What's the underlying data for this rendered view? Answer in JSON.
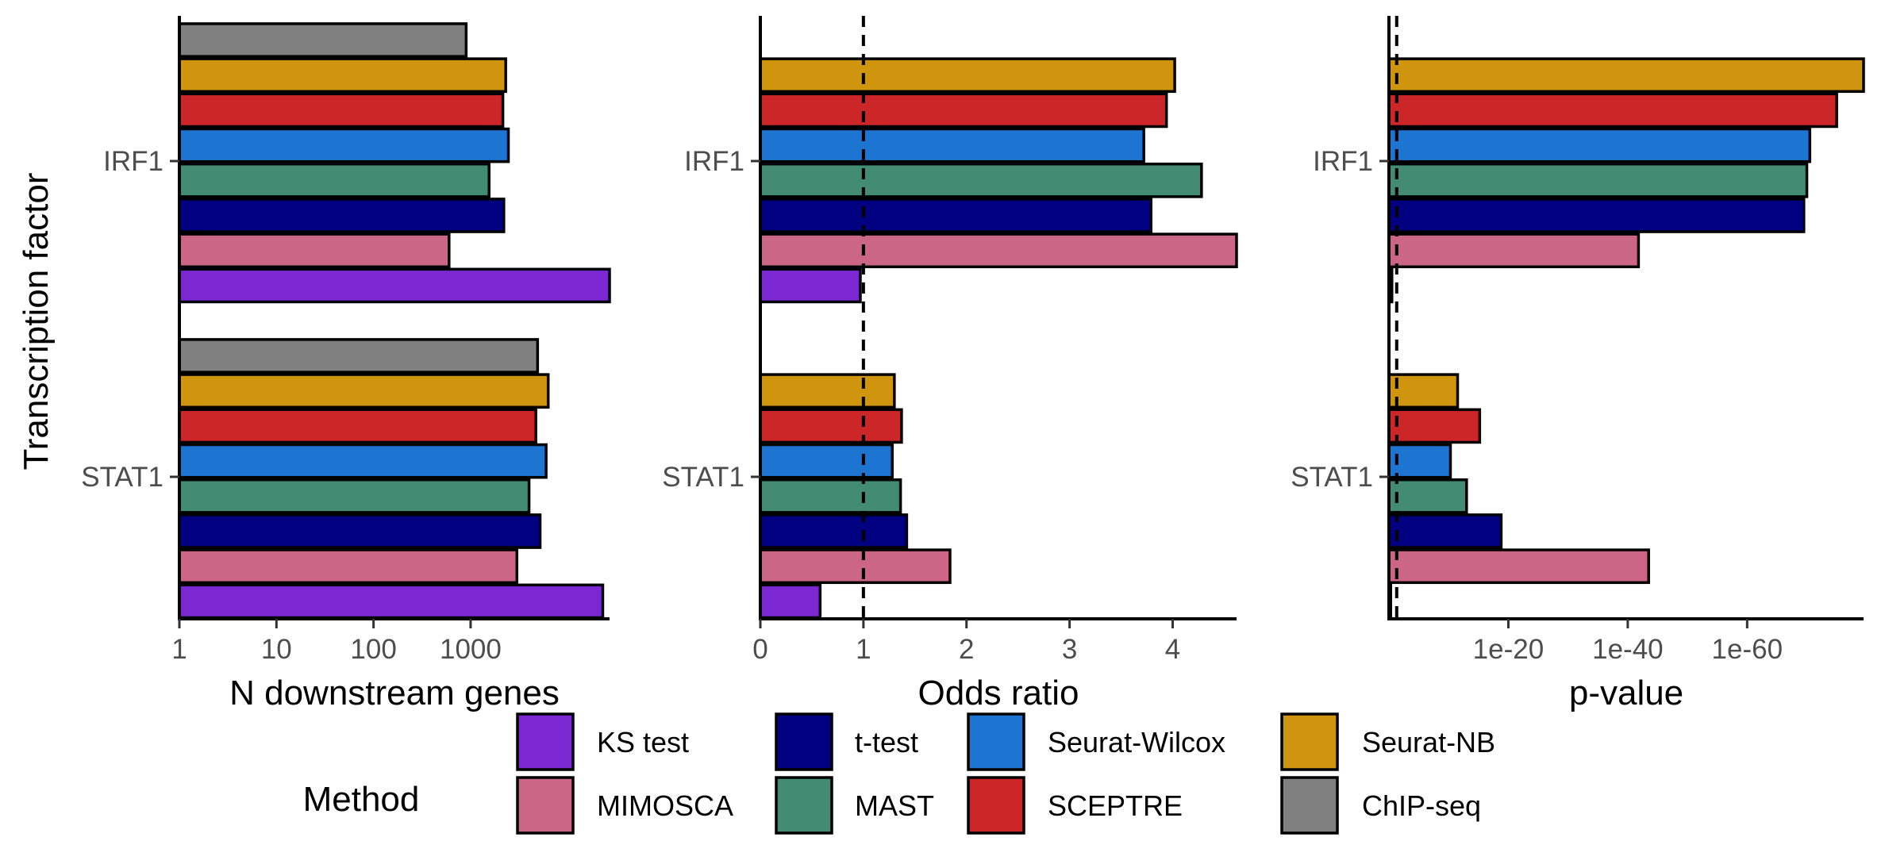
{
  "colors": {
    "KS test": "#7B27D2",
    "MIMOSCA": "#CC6686",
    "t-test": "#000080",
    "MAST": "#448B73",
    "Seurat-Wilcox": "#1D75D1",
    "SCEPTRE": "#CC2629",
    "Seurat-NB": "#CF950E",
    "ChIP-seq": "#808080"
  },
  "chart_data": [
    {
      "type": "bar",
      "orientation": "horizontal",
      "xlabel": "N downstream genes",
      "ylabel": "Transcription factor",
      "x_scale": "log10",
      "xlim": [
        1,
        27000
      ],
      "x_ticks": [
        1,
        10,
        100,
        1000
      ],
      "x_tick_labels": [
        "1",
        "10",
        "100",
        "1000"
      ],
      "categories": [
        "IRF1",
        "STAT1"
      ],
      "series": [
        {
          "name": "ChIP-seq",
          "values": [
            900,
            4900
          ]
        },
        {
          "name": "Seurat-NB",
          "values": [
            2300,
            6300
          ]
        },
        {
          "name": "SCEPTRE",
          "values": [
            2150,
            4700
          ]
        },
        {
          "name": "Seurat-Wilcox",
          "values": [
            2450,
            6000
          ]
        },
        {
          "name": "MAST",
          "values": [
            1550,
            4000
          ]
        },
        {
          "name": "t-test",
          "values": [
            2200,
            5200
          ]
        },
        {
          "name": "MIMOSCA",
          "values": [
            600,
            3000
          ]
        },
        {
          "name": "KS test",
          "values": [
            27000,
            23000
          ]
        }
      ]
    },
    {
      "type": "bar",
      "orientation": "horizontal",
      "xlabel": "Odds ratio",
      "x_scale": "linear",
      "xlim": [
        0,
        4.62
      ],
      "x_ticks": [
        0,
        1,
        2,
        3,
        4
      ],
      "x_tick_labels": [
        "0",
        "1",
        "2",
        "3",
        "4"
      ],
      "reference_line": 1,
      "categories": [
        "IRF1",
        "STAT1"
      ],
      "series": [
        {
          "name": "Seurat-NB",
          "values": [
            4.02,
            1.3
          ]
        },
        {
          "name": "SCEPTRE",
          "values": [
            3.94,
            1.37
          ]
        },
        {
          "name": "Seurat-Wilcox",
          "values": [
            3.72,
            1.28
          ]
        },
        {
          "name": "MAST",
          "values": [
            4.28,
            1.36
          ]
        },
        {
          "name": "t-test",
          "values": [
            3.79,
            1.42
          ]
        },
        {
          "name": "MIMOSCA",
          "values": [
            4.62,
            1.84
          ]
        },
        {
          "name": "KS test",
          "values": [
            0.97,
            0.58
          ]
        }
      ]
    },
    {
      "type": "bar",
      "orientation": "horizontal",
      "xlabel": "p-value",
      "x_scale": "-log10 (reversed log)",
      "xlim_neglog10": [
        0,
        79.5
      ],
      "x_ticks_neglog10": [
        20,
        40,
        60
      ],
      "x_tick_labels": [
        "1e-20",
        "1e-40",
        "1e-60"
      ],
      "reference_line_neglog10": 1.3,
      "categories": [
        "IRF1",
        "STAT1"
      ],
      "series": [
        {
          "name": "Seurat-NB",
          "values_neglog10": [
            79.5,
            11.5
          ]
        },
        {
          "name": "SCEPTRE",
          "values_neglog10": [
            75.0,
            15.2
          ]
        },
        {
          "name": "Seurat-Wilcox",
          "values_neglog10": [
            70.5,
            10.3
          ]
        },
        {
          "name": "MAST",
          "values_neglog10": [
            70.0,
            13.0
          ]
        },
        {
          "name": "t-test",
          "values_neglog10": [
            69.5,
            18.8
          ]
        },
        {
          "name": "MIMOSCA",
          "values_neglog10": [
            41.8,
            43.5
          ]
        },
        {
          "name": "KS test",
          "values_neglog10": [
            0.5,
            0.3
          ]
        }
      ]
    }
  ],
  "legend": {
    "title": "Method",
    "entries": [
      "KS test",
      "MIMOSCA",
      "t-test",
      "MAST",
      "Seurat-Wilcox",
      "SCEPTRE",
      "Seurat-NB",
      "ChIP-seq"
    ]
  }
}
